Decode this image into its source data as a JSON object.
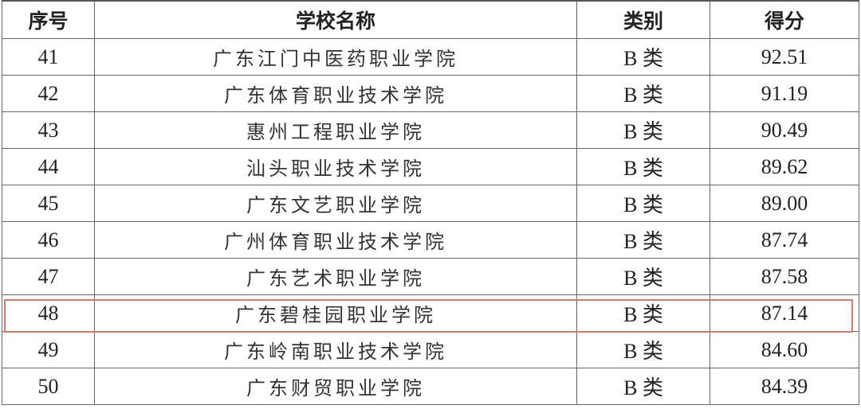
{
  "table": {
    "headers": [
      "序号",
      "学校名称",
      "类别",
      "得分"
    ],
    "rows": [
      {
        "no": "41",
        "name": "广东江门中医药职业学院",
        "category": "B 类",
        "score": "92.51"
      },
      {
        "no": "42",
        "name": "广东体育职业技术学院",
        "category": "B 类",
        "score": "91.19"
      },
      {
        "no": "43",
        "name": "惠州工程职业学院",
        "category": "B 类",
        "score": "90.49"
      },
      {
        "no": "44",
        "name": "汕头职业技术学院",
        "category": "B 类",
        "score": "89.62"
      },
      {
        "no": "45",
        "name": "广东文艺职业学院",
        "category": "B 类",
        "score": "89.00"
      },
      {
        "no": "46",
        "name": "广州体育职业技术学院",
        "category": "B 类",
        "score": "87.74"
      },
      {
        "no": "47",
        "name": "广东艺术职业学院",
        "category": "B 类",
        "score": "87.58"
      },
      {
        "no": "48",
        "name": "广东碧桂园职业学院",
        "category": "B 类",
        "score": "87.14"
      },
      {
        "no": "49",
        "name": "广东岭南职业技术学院",
        "category": "B 类",
        "score": "84.60"
      },
      {
        "no": "50",
        "name": "广东财贸职业学院",
        "category": "B 类",
        "score": "84.39"
      }
    ],
    "highlighted_row": "48",
    "highlight_color": "#e0786a"
  }
}
